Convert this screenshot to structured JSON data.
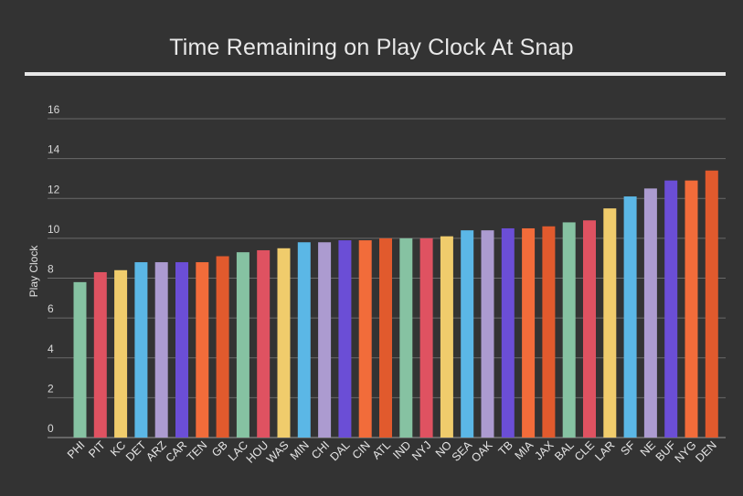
{
  "chart_data": {
    "type": "bar",
    "title": "Time Remaining on Play Clock At Snap",
    "xlabel": "",
    "ylabel": "Play Clock",
    "ylim": [
      0,
      16
    ],
    "yticks": [
      0,
      2,
      4,
      6,
      8,
      10,
      12,
      14,
      16
    ],
    "grid": true,
    "categories": [
      "PHI",
      "PIT",
      "KC",
      "DET",
      "ARZ",
      "CAR",
      "TEN",
      "GB",
      "LAC",
      "HOU",
      "WAS",
      "MIN",
      "CHI",
      "DAL",
      "CIN",
      "ATL",
      "IND",
      "NYJ",
      "NO",
      "SEA",
      "OAK",
      "TB",
      "MIA",
      "JAX",
      "BAL",
      "CLE",
      "LAR",
      "SF",
      "NE",
      "BUF",
      "NYG",
      "DEN"
    ],
    "values": [
      7.8,
      8.3,
      8.4,
      8.8,
      8.8,
      8.8,
      8.8,
      9.1,
      9.3,
      9.4,
      9.5,
      9.8,
      9.8,
      9.9,
      9.9,
      10.0,
      10.0,
      10.0,
      10.1,
      10.4,
      10.4,
      10.5,
      10.5,
      10.6,
      10.8,
      10.9,
      11.5,
      12.1,
      12.5,
      12.9,
      12.9,
      13.4
    ],
    "bar_colors": [
      "#86c2a2",
      "#df5261",
      "#f0cc6c",
      "#5bb7e6",
      "#ac9bd0",
      "#6b4ed6",
      "#f26c3a",
      "#e15a2d",
      "#86c2a2",
      "#df5261",
      "#f0cc6c",
      "#5bb7e6",
      "#ac9bd0",
      "#6b4ed6",
      "#f26c3a",
      "#e15a2d",
      "#86c2a2",
      "#df5261",
      "#f0cc6c",
      "#5bb7e6",
      "#ac9bd0",
      "#6b4ed6",
      "#f26c3a",
      "#e15a2d",
      "#86c2a2",
      "#df5261",
      "#f0cc6c",
      "#5bb7e6",
      "#ac9bd0",
      "#6b4ed6",
      "#f26c3a",
      "#e15a2d"
    ]
  },
  "colors": {
    "background": "#333333",
    "text": "#e6e6e6",
    "grid": "#6a6a6a"
  }
}
